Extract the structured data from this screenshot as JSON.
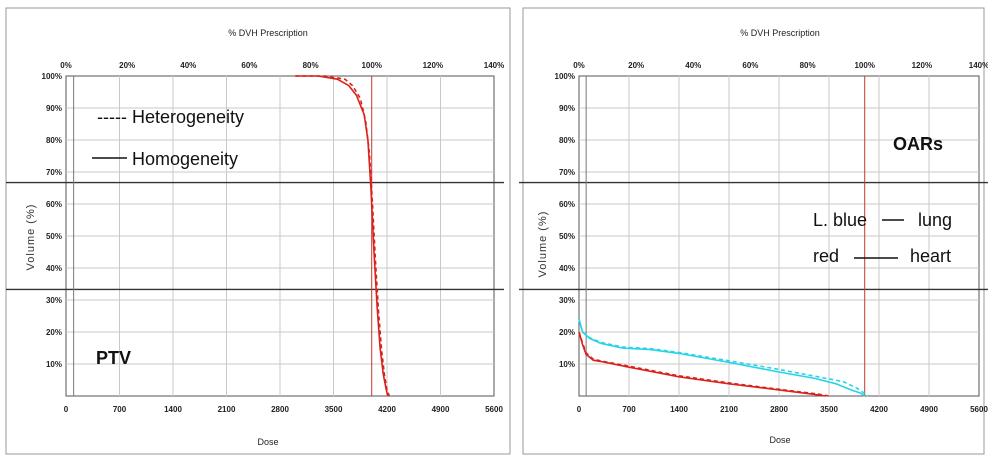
{
  "chart_data": [
    {
      "type": "line",
      "panel": "left",
      "top_axis_title": "% DVH Prescription",
      "top_ticks": [
        "0%",
        "20%",
        "40%",
        "60%",
        "80%",
        "100%",
        "120%",
        "140%"
      ],
      "xlabel": "Dose",
      "x_ticks": [
        "0",
        "700",
        "1400",
        "2100",
        "2800",
        "3500",
        "4200",
        "4900",
        "5600"
      ],
      "ylabel": "Volume (%)",
      "y_ticks": [
        "10%",
        "20%",
        "30%",
        "40%",
        "50%",
        "60%",
        "70%",
        "80%",
        "90%",
        "100%"
      ],
      "xlim": [
        0,
        5600
      ],
      "ylim": [
        0,
        100
      ],
      "prescription_dose": 4000,
      "reference_lines_y": [
        66.7,
        33.3
      ],
      "annotations": {
        "dashed_legend": "----- Heterogeneity",
        "solid_legend": "Homogeneity",
        "structure": "PTV"
      },
      "series": [
        {
          "name": "Homogeneity",
          "color": "#d9221c",
          "dash": false,
          "x": [
            3000,
            3300,
            3550,
            3700,
            3800,
            3900,
            3950,
            3990,
            4030,
            4070,
            4110,
            4150,
            4190,
            4210
          ],
          "y": [
            100,
            100,
            99,
            97,
            94,
            88,
            80,
            65,
            45,
            28,
            15,
            7,
            2,
            0
          ]
        },
        {
          "name": "Heterogeneity",
          "color": "#d9221c",
          "dash": true,
          "x": [
            3000,
            3400,
            3650,
            3750,
            3850,
            3920,
            3970,
            4010,
            4050,
            4090,
            4130,
            4170,
            4200,
            4230
          ],
          "y": [
            100,
            100,
            99,
            97,
            93,
            86,
            76,
            60,
            42,
            26,
            14,
            6,
            2,
            0
          ]
        }
      ]
    },
    {
      "type": "line",
      "panel": "right",
      "top_axis_title": "% DVH Prescription",
      "top_ticks": [
        "0%",
        "20%",
        "40%",
        "60%",
        "80%",
        "100%",
        "120%",
        "140%"
      ],
      "xlabel": "Dose",
      "x_ticks": [
        "0",
        "700",
        "1400",
        "2100",
        "2800",
        "3500",
        "4200",
        "4900",
        "5600"
      ],
      "ylabel": "Volume (%)",
      "y_ticks": [
        "10%",
        "20%",
        "30%",
        "40%",
        "50%",
        "60%",
        "70%",
        "80%",
        "90%",
        "100%"
      ],
      "xlim": [
        0,
        5600
      ],
      "ylim": [
        0,
        100
      ],
      "prescription_dose": 4000,
      "reference_lines_y": [
        66.7,
        33.3
      ],
      "annotations": {
        "structure": "OARs",
        "lung_legend_left": "L. blue",
        "lung_legend_right": "lung",
        "heart_legend_left": "red",
        "heart_legend_right": "heart"
      },
      "series": [
        {
          "name": "lung",
          "color": "#26d4e8",
          "dash": false,
          "x": [
            0,
            50,
            150,
            300,
            600,
            1000,
            1400,
            2100,
            2800,
            3300,
            3600,
            3800,
            3950,
            4000
          ],
          "y": [
            24,
            20,
            18,
            16.5,
            15,
            14.5,
            13.3,
            10.5,
            7.5,
            5.5,
            3.8,
            2,
            0.8,
            0
          ]
        },
        {
          "name": "lung",
          "color": "#26d4e8",
          "dash": true,
          "x": [
            0,
            50,
            150,
            300,
            600,
            1000,
            1400,
            2100,
            2800,
            3300,
            3700,
            3900,
            4000,
            4050
          ],
          "y": [
            24,
            20,
            18.2,
            16.8,
            15.3,
            14.8,
            13.6,
            11,
            8.3,
            6.2,
            4.5,
            2.3,
            0.8,
            0
          ]
        },
        {
          "name": "heart",
          "color": "#d9221c",
          "dash": false,
          "x": [
            0,
            50,
            100,
            200,
            300,
            700,
            1400,
            2100,
            2800,
            3300,
            3450
          ],
          "y": [
            20,
            16,
            13,
            11.2,
            10.8,
            9,
            6,
            3.8,
            1.9,
            0.5,
            0
          ]
        },
        {
          "name": "heart",
          "color": "#d9221c",
          "dash": true,
          "x": [
            0,
            50,
            100,
            200,
            300,
            700,
            1400,
            2100,
            2800,
            3350,
            3500
          ],
          "y": [
            20,
            16.5,
            13.5,
            11.5,
            11,
            9.3,
            6.3,
            4.1,
            2.1,
            0.6,
            0
          ]
        }
      ]
    }
  ]
}
